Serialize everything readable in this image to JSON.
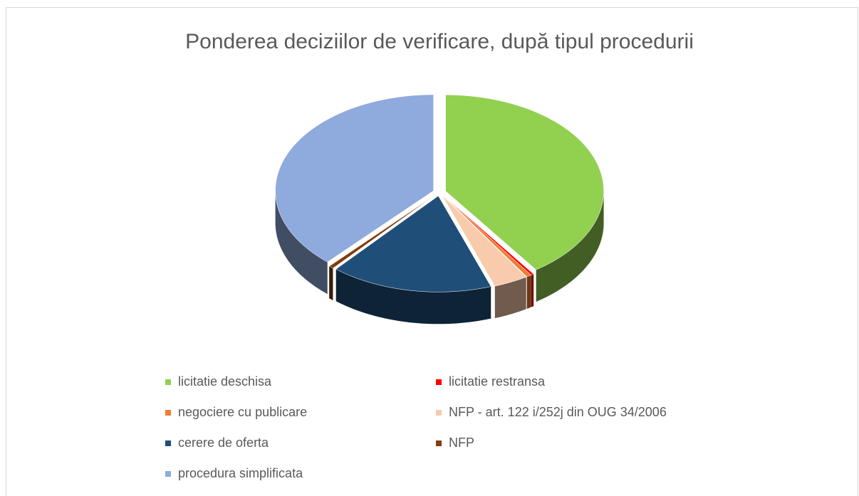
{
  "chart_data": {
    "type": "pie",
    "title": "Ponderea deciziilor de verificare, după tipul procedurii",
    "categories": [
      "licitatie deschisa",
      "licitatie restransa",
      "negociere cu publicare",
      "NFP - art. 122 i/252j din OUG 34/2006",
      "cerere de oferta",
      "NFP",
      "procedura simplificata"
    ],
    "values": [
      40.3,
      0.3,
      0.5,
      3.5,
      16.6,
      0.5,
      38.3
    ],
    "colors": [
      "#92d050",
      "#ff0000",
      "#ed7d31",
      "#f8cbad",
      "#1f4e79",
      "#843c0c",
      "#8faadc"
    ],
    "legend": "bottom"
  }
}
